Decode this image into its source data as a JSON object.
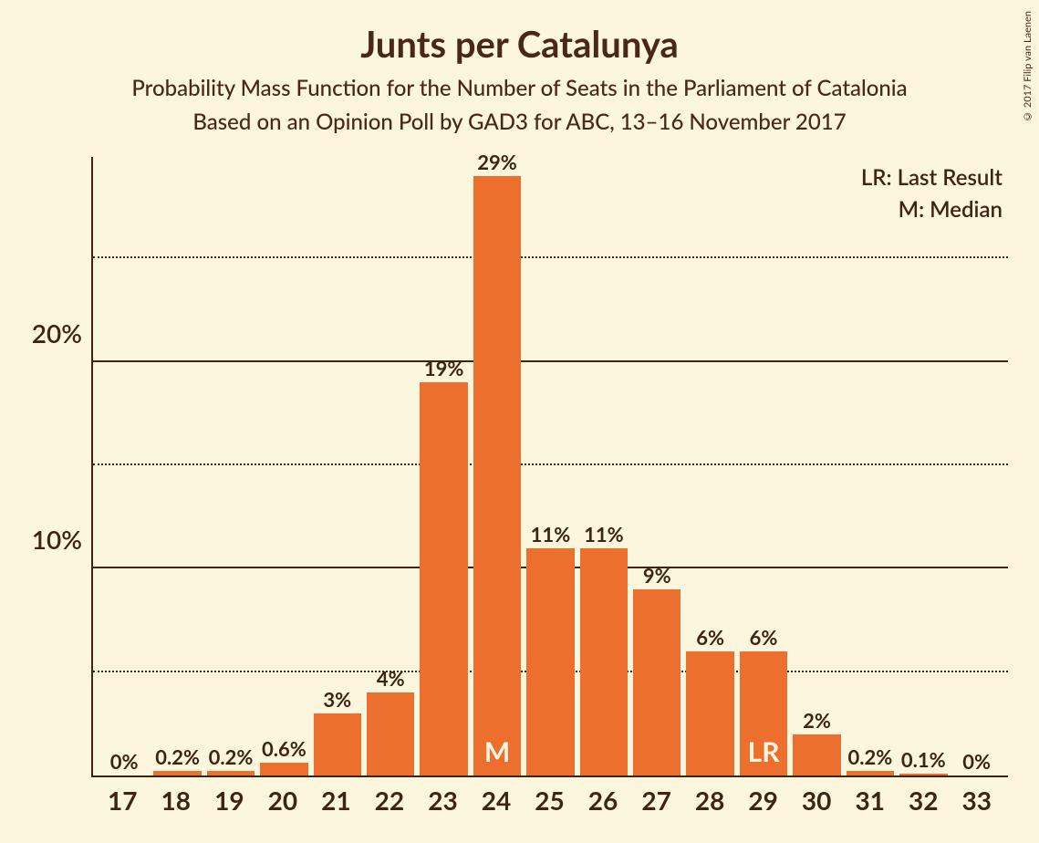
{
  "copyright": "© 2017 Filip van Laenen",
  "title": "Junts per Catalunya",
  "subtitle1": "Probability Mass Function for the Number of Seats in the Parliament of Catalonia",
  "subtitle2": "Based on an Opinion Poll by GAD3 for ABC, 13–16 November 2017",
  "legend_lr": "LR: Last Result",
  "legend_m": "M: Median",
  "chart": {
    "type": "bar",
    "bar_color": "#ed6f2d",
    "background_color": "#fbf6dd",
    "axis_color": "#3d2512",
    "text_color": "#3d2512",
    "marker_text_color": "#fbf6dd",
    "ylim_max": 30,
    "y_major_ticks": [
      10,
      20
    ],
    "y_minor_ticks": [
      5,
      15,
      25
    ],
    "bars": [
      {
        "x": "17",
        "value": 0,
        "label": "0%",
        "marker": ""
      },
      {
        "x": "18",
        "value": 0.2,
        "label": "0.2%",
        "marker": ""
      },
      {
        "x": "19",
        "value": 0.2,
        "label": "0.2%",
        "marker": ""
      },
      {
        "x": "20",
        "value": 0.6,
        "label": "0.6%",
        "marker": ""
      },
      {
        "x": "21",
        "value": 3,
        "label": "3%",
        "marker": ""
      },
      {
        "x": "22",
        "value": 4,
        "label": "4%",
        "marker": ""
      },
      {
        "x": "23",
        "value": 19,
        "label": "19%",
        "marker": ""
      },
      {
        "x": "24",
        "value": 29,
        "label": "29%",
        "marker": "M"
      },
      {
        "x": "25",
        "value": 11,
        "label": "11%",
        "marker": ""
      },
      {
        "x": "26",
        "value": 11,
        "label": "11%",
        "marker": ""
      },
      {
        "x": "27",
        "value": 9,
        "label": "9%",
        "marker": ""
      },
      {
        "x": "28",
        "value": 6,
        "label": "6%",
        "marker": ""
      },
      {
        "x": "29",
        "value": 6,
        "label": "6%",
        "marker": "LR"
      },
      {
        "x": "30",
        "value": 2,
        "label": "2%",
        "marker": ""
      },
      {
        "x": "31",
        "value": 0.2,
        "label": "0.2%",
        "marker": ""
      },
      {
        "x": "32",
        "value": 0.1,
        "label": "0.1%",
        "marker": ""
      },
      {
        "x": "33",
        "value": 0,
        "label": "0%",
        "marker": ""
      }
    ]
  }
}
